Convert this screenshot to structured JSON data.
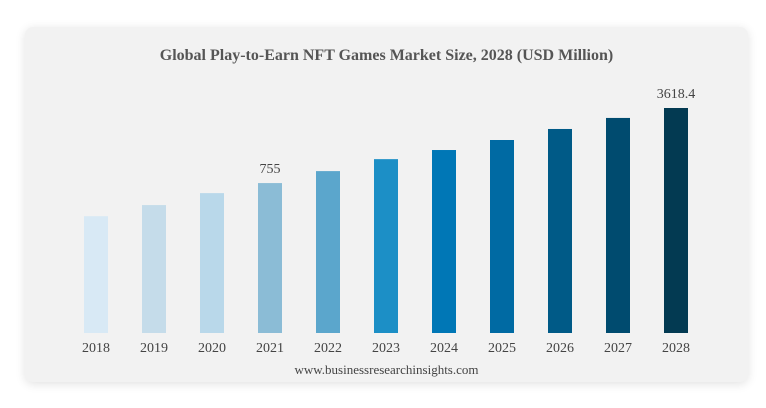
{
  "chart_data": {
    "type": "bar",
    "title": "Global Play-to-Earn NFT Games Market Size, 2028 (USD Million)",
    "categories": [
      "2018",
      "2019",
      "2020",
      "2021",
      "2022",
      "2023",
      "2024",
      "2025",
      "2026",
      "2027",
      "2028"
    ],
    "values": [
      378,
      477,
      612,
      755,
      969,
      1244,
      1505,
      1855,
      2335,
      2940,
      3618.4
    ],
    "data_labels": {
      "3": "755",
      "10": "3618.4"
    },
    "colors": [
      "#d8e9f5",
      "#c5dcea",
      "#b9d8ea",
      "#8bbcd6",
      "#5ba6cc",
      "#1c8fc6",
      "#0077b6",
      "#006aa3",
      "#005a87",
      "#004b6f",
      "#033a52"
    ],
    "yscale": "log",
    "ylim": [
      33,
      4000
    ],
    "xlabel": "",
    "ylabel": "",
    "grid": false,
    "legend": "none"
  },
  "footer": "www.businessresearchinsights.com"
}
